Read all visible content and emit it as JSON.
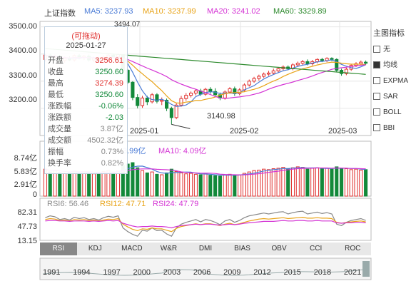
{
  "colors": {
    "up": "#e0302e",
    "down": "#12893a",
    "ma5": "#4a7bd6",
    "ma10": "#e8a317",
    "ma20": "#d433d4",
    "ma60": "#2d8a2d"
  },
  "header": {
    "index_name": "上证指数",
    "ma5": "MA5: 3237.93",
    "ma10": "MA10: 3237.99",
    "ma20": "MA20: 3241.02",
    "ma60": "MA60: 3329.89"
  },
  "price_axis": {
    "ticks": [
      "3500.00",
      "3400.00",
      "3300.00",
      "3200.00"
    ],
    "top_partial": "3494.07"
  },
  "date_labels": [
    "2025-01",
    "2025-02",
    "2025-03"
  ],
  "min_annotation": "3140.98",
  "volume_panel": {
    "ticks": [
      "8.74亿",
      "5.83亿",
      "2.91亿",
      "0"
    ],
    "ma5_legend": "3.99亿",
    "ma10_legend": "MA10: 4.09亿"
  },
  "rsi_panel": {
    "ticks": [
      "82.31",
      "47.73",
      "13.15"
    ],
    "rsi6": "RSI6: 56.46",
    "rsi12": "RSI12: 47.71",
    "rsi24": "RSI24: 47.79"
  },
  "tooltip": {
    "title": "(可拖动)",
    "date": "2025-01-27",
    "rows": [
      {
        "k": "开盘",
        "v": "3256.61",
        "tone": "up"
      },
      {
        "k": "收盘",
        "v": "3250.60",
        "tone": "down"
      },
      {
        "k": "最高",
        "v": "3274.39",
        "tone": "up"
      },
      {
        "k": "最低",
        "v": "3250.60",
        "tone": "down"
      },
      {
        "k": "涨跌幅",
        "v": "-0.06%",
        "tone": "down"
      },
      {
        "k": "涨跌额",
        "v": "-2.03",
        "tone": "down"
      },
      {
        "k": "成交量",
        "v": "3.87亿",
        "tone": "muted"
      },
      {
        "k": "成交额",
        "v": "4502.32亿",
        "tone": "muted"
      },
      {
        "k": "振幅",
        "v": "0.73%",
        "tone": "muted"
      },
      {
        "k": "换手率",
        "v": "0.82%",
        "tone": "muted"
      }
    ]
  },
  "side_panel": {
    "title": "主图指标",
    "items": [
      {
        "label": "无",
        "checked": false
      },
      {
        "label": "均线",
        "checked": true
      },
      {
        "label": "EXPMA",
        "checked": false
      },
      {
        "label": "SAR",
        "checked": false
      },
      {
        "label": "BOLL",
        "checked": false
      },
      {
        "label": "BBI",
        "checked": false
      }
    ]
  },
  "indicator_tabs": [
    "RSI",
    "KDJ",
    "MACD",
    "W&R",
    "DMI",
    "BIAS",
    "OBV",
    "CCI",
    "ROC"
  ],
  "active_tab": "RSI",
  "year_axis": [
    "1991",
    "1994",
    "1997",
    "2000",
    "2003",
    "2006",
    "2009",
    "2012",
    "2015",
    "2018",
    "2021"
  ],
  "chart_data": {
    "type": "candlestick",
    "y_range": [
      3100,
      3520
    ],
    "candles": [
      [
        3380,
        3396,
        3372,
        3400
      ],
      [
        3396,
        3388,
        3380,
        3402
      ],
      [
        3388,
        3392,
        3382,
        3398
      ],
      [
        3392,
        3376,
        3370,
        3396
      ],
      [
        3376,
        3384,
        3368,
        3390
      ],
      [
        3384,
        3378,
        3374,
        3392
      ],
      [
        3378,
        3394,
        3372,
        3398
      ],
      [
        3394,
        3386,
        3380,
        3400
      ],
      [
        3386,
        3392,
        3378,
        3396
      ],
      [
        3392,
        3378,
        3372,
        3398
      ],
      [
        3378,
        3384,
        3370,
        3390
      ],
      [
        3384,
        3376,
        3370,
        3390
      ],
      [
        3376,
        3388,
        3370,
        3394
      ],
      [
        3388,
        3396,
        3382,
        3402
      ],
      [
        3396,
        3390,
        3384,
        3402
      ],
      [
        3390,
        3398,
        3386,
        3402
      ],
      [
        3398,
        3340,
        3334,
        3400
      ],
      [
        3340,
        3296,
        3290,
        3344
      ],
      [
        3296,
        3240,
        3230,
        3300
      ],
      [
        3240,
        3210,
        3200,
        3252
      ],
      [
        3210,
        3238,
        3202,
        3246
      ],
      [
        3238,
        3224,
        3212,
        3246
      ],
      [
        3224,
        3250,
        3218,
        3256
      ],
      [
        3250,
        3226,
        3218,
        3256
      ],
      [
        3226,
        3230,
        3212,
        3240
      ],
      [
        3230,
        3200,
        3190,
        3236
      ],
      [
        3200,
        3166,
        3140.98,
        3206
      ],
      [
        3166,
        3212,
        3160,
        3218
      ],
      [
        3212,
        3236,
        3206,
        3246
      ],
      [
        3236,
        3248,
        3228,
        3256
      ],
      [
        3248,
        3256,
        3240,
        3262
      ],
      [
        3256,
        3264,
        3248,
        3270
      ],
      [
        3264,
        3252,
        3246,
        3272
      ],
      [
        3252,
        3270,
        3246,
        3276
      ],
      [
        3270,
        3262,
        3254,
        3278
      ],
      [
        3262,
        3250,
        3246,
        3274
      ],
      [
        3250,
        3238,
        3230,
        3258
      ],
      [
        3238,
        3260,
        3232,
        3266
      ],
      [
        3260,
        3272,
        3254,
        3278
      ],
      [
        3272,
        3254,
        3246,
        3280
      ],
      [
        3254,
        3268,
        3248,
        3274
      ],
      [
        3268,
        3286,
        3262,
        3292
      ],
      [
        3286,
        3300,
        3280,
        3306
      ],
      [
        3300,
        3310,
        3294,
        3316
      ],
      [
        3310,
        3318,
        3302,
        3324
      ],
      [
        3318,
        3326,
        3312,
        3332
      ],
      [
        3326,
        3330,
        3320,
        3338
      ],
      [
        3330,
        3338,
        3324,
        3346
      ],
      [
        3338,
        3346,
        3332,
        3352
      ],
      [
        3346,
        3352,
        3340,
        3358
      ],
      [
        3352,
        3346,
        3340,
        3358
      ],
      [
        3346,
        3360,
        3340,
        3366
      ],
      [
        3360,
        3366,
        3354,
        3372
      ],
      [
        3366,
        3372,
        3360,
        3378
      ],
      [
        3372,
        3364,
        3358,
        3380
      ],
      [
        3364,
        3372,
        3358,
        3378
      ],
      [
        3372,
        3380,
        3366,
        3384
      ],
      [
        3380,
        3376,
        3370,
        3386
      ],
      [
        3376,
        3384,
        3370,
        3388
      ],
      [
        3384,
        3380,
        3374,
        3388
      ],
      [
        3380,
        3340,
        3334,
        3384
      ],
      [
        3340,
        3328,
        3320,
        3346
      ],
      [
        3328,
        3344,
        3322,
        3350
      ],
      [
        3344,
        3358,
        3338,
        3364
      ],
      [
        3358,
        3364,
        3352,
        3370
      ],
      [
        3364,
        3370,
        3358,
        3376
      ],
      [
        3370,
        3366,
        3360,
        3376
      ]
    ],
    "volume_range": [
      0,
      8.74
    ],
    "volumes": [
      5.8,
      5.2,
      5.6,
      5.1,
      4.9,
      5.3,
      5.4,
      5.0,
      5.2,
      5.1,
      4.8,
      5.0,
      5.3,
      5.5,
      5.1,
      5.4,
      6.6,
      6.9,
      7.2,
      6.1,
      5.5,
      5.0,
      5.2,
      4.7,
      4.6,
      5.0,
      5.8,
      5.3,
      5.0,
      4.8,
      4.9,
      4.7,
      4.6,
      4.8,
      4.5,
      4.4,
      4.3,
      4.6,
      4.7,
      4.5,
      4.6,
      4.9,
      5.2,
      5.5,
      5.6,
      5.8,
      5.7,
      5.9,
      6.0,
      6.2,
      5.9,
      6.1,
      6.3,
      6.2,
      5.8,
      6.0,
      6.1,
      5.9,
      6.0,
      5.8,
      6.3,
      6.0,
      5.9,
      5.7,
      5.8,
      5.6,
      5.7
    ],
    "rsi_range": [
      13.15,
      82.31
    ],
    "rsi6": [
      62,
      66,
      64,
      58,
      60,
      57,
      63,
      60,
      62,
      58,
      60,
      57,
      62,
      65,
      63,
      66,
      40,
      32,
      26,
      22,
      35,
      33,
      40,
      34,
      35,
      27,
      22,
      40,
      48,
      52,
      55,
      58,
      53,
      58,
      56,
      52,
      47,
      55,
      58,
      52,
      56,
      62,
      66,
      68,
      70,
      72,
      70,
      72,
      74,
      75,
      70,
      73,
      75,
      76,
      70,
      72,
      74,
      71,
      73,
      70,
      48,
      45,
      52,
      56,
      58,
      60,
      56
    ],
    "rsi12": [
      58,
      60,
      59,
      56,
      57,
      55,
      58,
      57,
      58,
      56,
      57,
      55,
      57,
      59,
      58,
      60,
      48,
      42,
      37,
      34,
      38,
      37,
      40,
      38,
      38,
      35,
      32,
      39,
      43,
      45,
      47,
      49,
      47,
      49,
      49,
      47,
      45,
      48,
      50,
      47,
      49,
      52,
      55,
      57,
      59,
      60,
      59,
      60,
      61,
      62,
      60,
      61,
      62,
      63,
      61,
      61,
      62,
      61,
      61,
      60,
      52,
      50,
      52,
      53,
      54,
      55,
      53
    ],
    "rsi24": [
      55,
      56,
      56,
      55,
      55,
      54,
      55,
      55,
      55,
      54,
      55,
      54,
      55,
      56,
      55,
      56,
      50,
      47,
      44,
      42,
      43,
      43,
      44,
      43,
      43,
      42,
      40,
      43,
      45,
      46,
      47,
      48,
      47,
      48,
      48,
      47,
      46,
      47,
      48,
      47,
      48,
      50,
      51,
      52,
      53,
      54,
      54,
      54,
      55,
      56,
      55,
      55,
      56,
      56,
      55,
      55,
      56,
      55,
      55,
      55,
      51,
      50,
      51,
      51,
      52,
      52,
      51
    ]
  }
}
